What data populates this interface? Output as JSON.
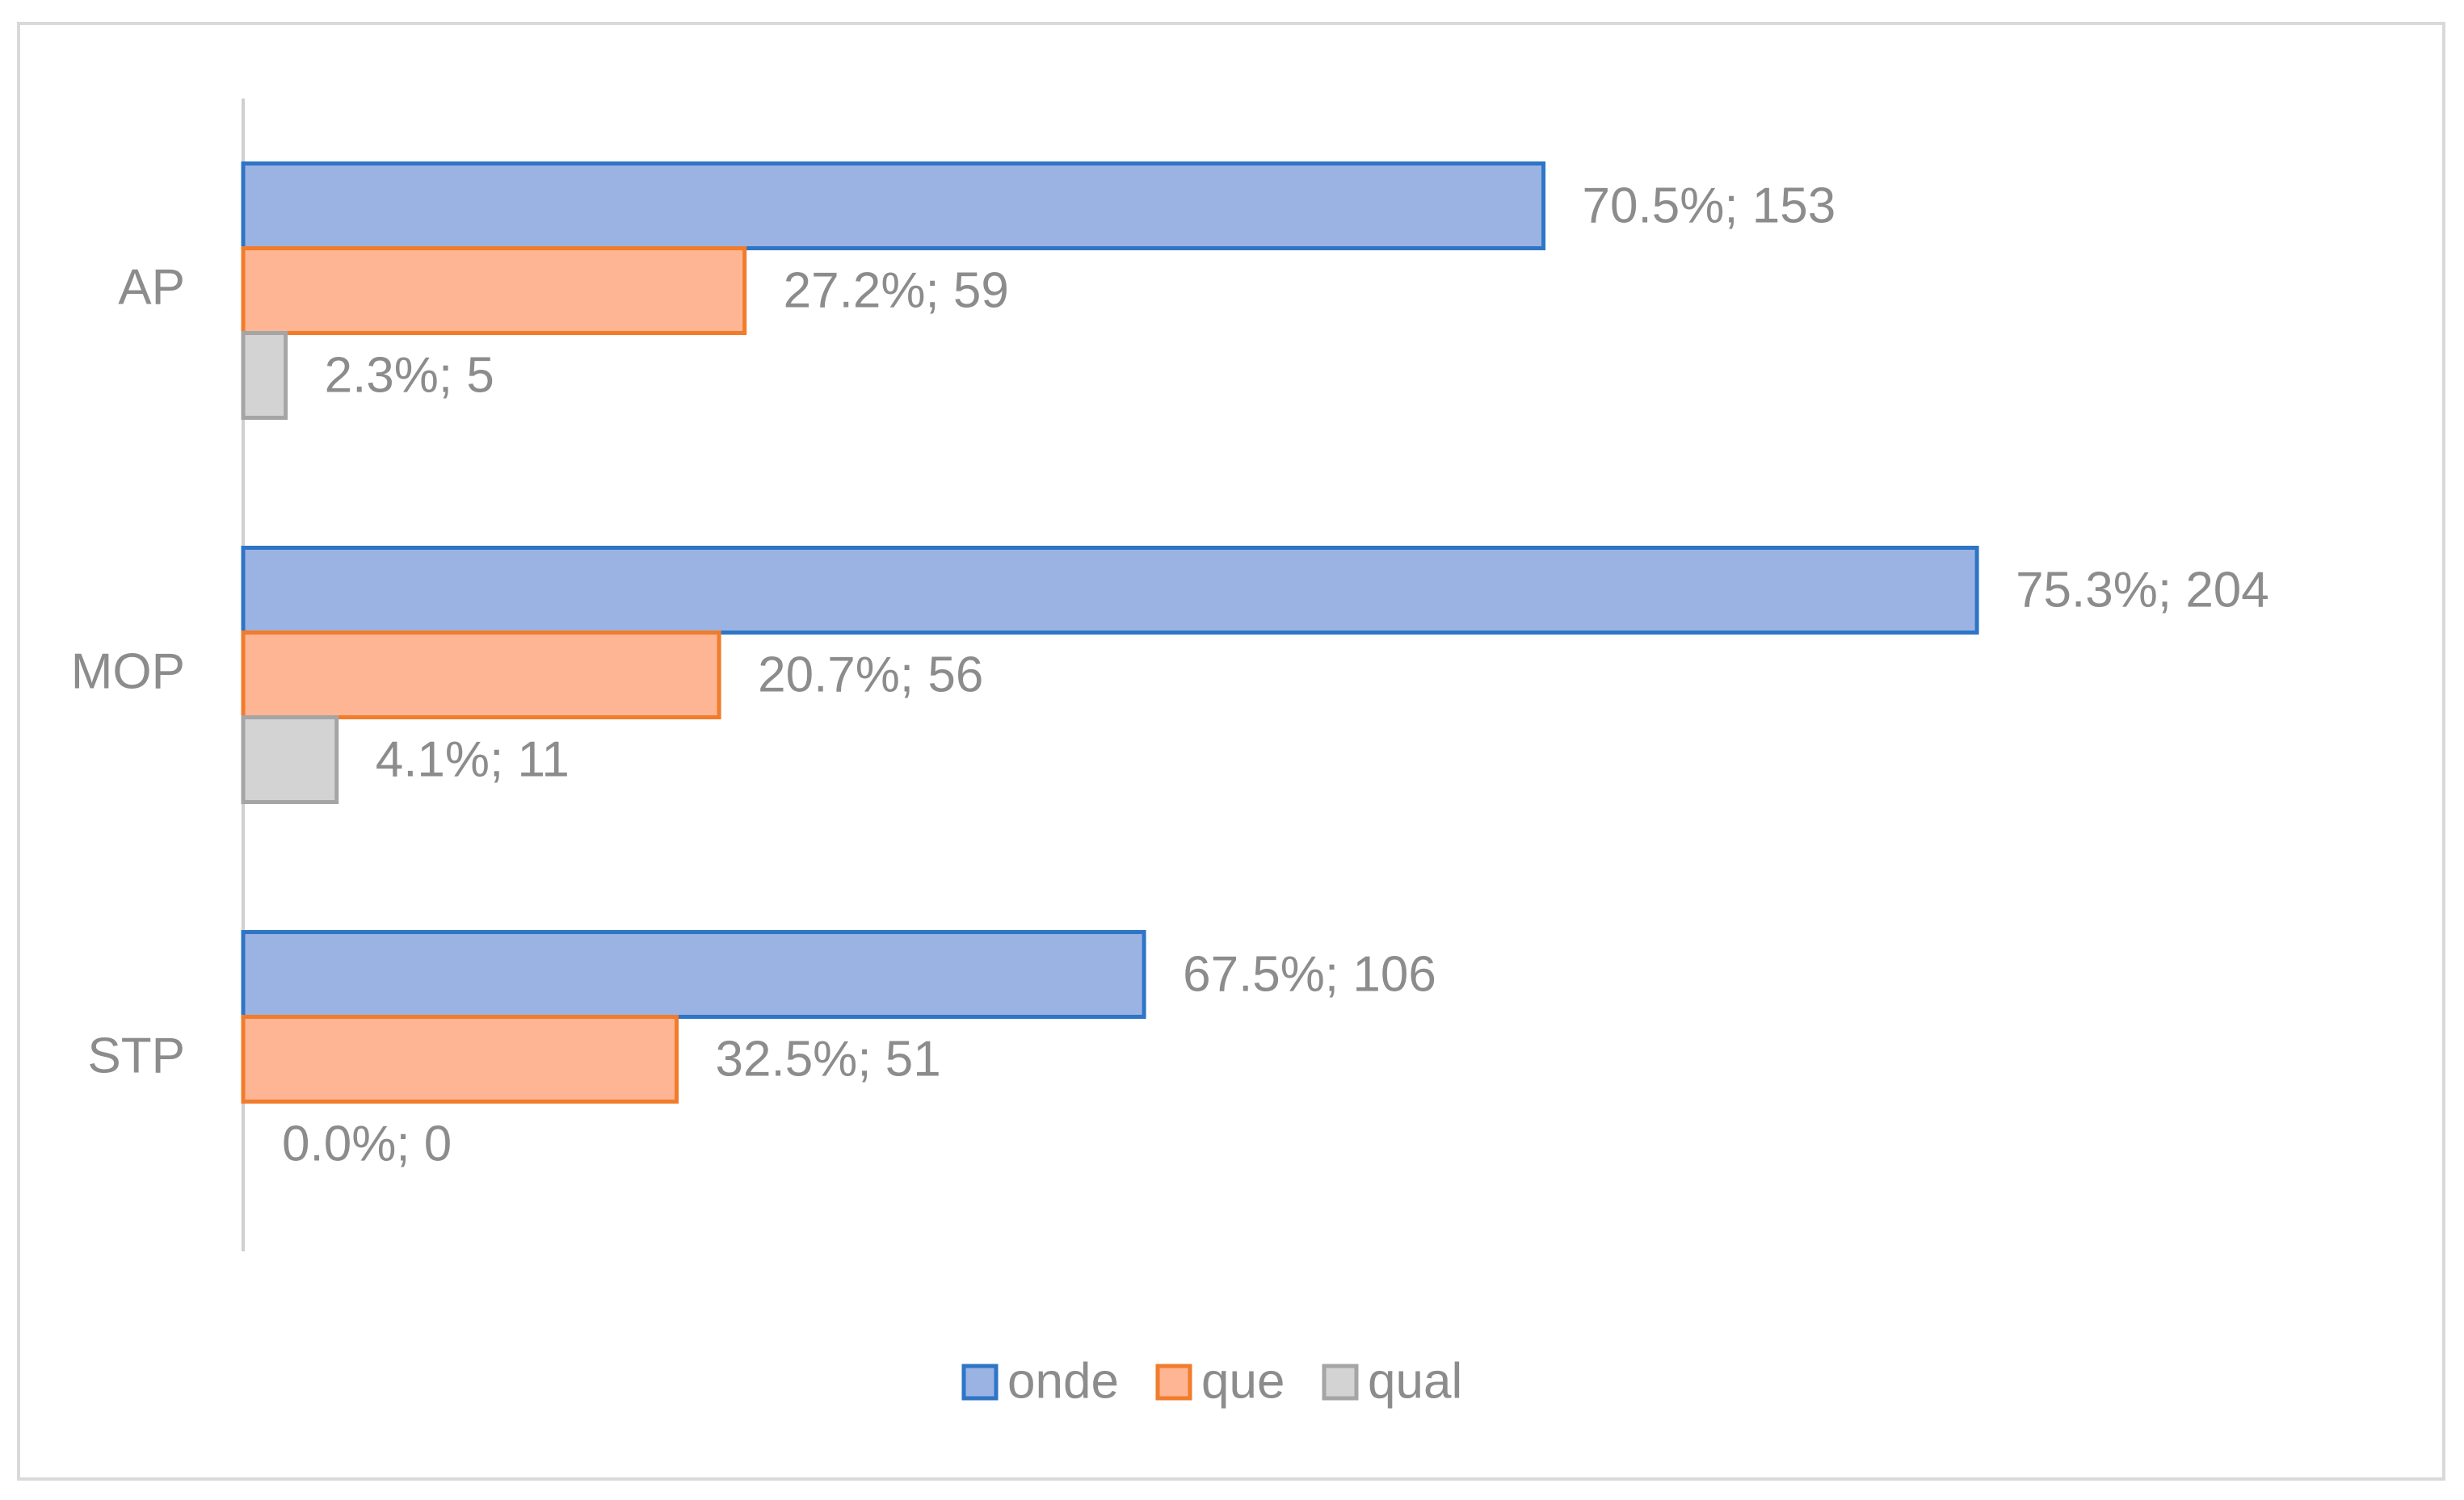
{
  "chart_data": {
    "type": "bar",
    "orientation": "horizontal",
    "categories": [
      "AP",
      "MOP",
      "STP"
    ],
    "series": [
      {
        "name": "onde",
        "color": "#2e75c6",
        "fill": "#9bb3e3",
        "values": [
          153,
          204,
          106
        ],
        "value_labels": [
          "70.5%; 153",
          "75.3%; 204",
          "67.5%; 106"
        ]
      },
      {
        "name": "que",
        "color": "#f07c2c",
        "fill": "#fdb594",
        "values": [
          59,
          56,
          51
        ],
        "value_labels": [
          "27.2%; 59",
          "20.7%; 56",
          "32.5%; 51"
        ]
      },
      {
        "name": "qual",
        "color": "#a5a5a5",
        "fill": "#d3d3d3",
        "values": [
          5,
          11,
          0
        ],
        "value_labels": [
          "2.3%; 5",
          "4.1%; 11",
          "0.0%; 0"
        ]
      }
    ],
    "xlim": [
      0,
      250
    ],
    "legend": "bottom"
  }
}
